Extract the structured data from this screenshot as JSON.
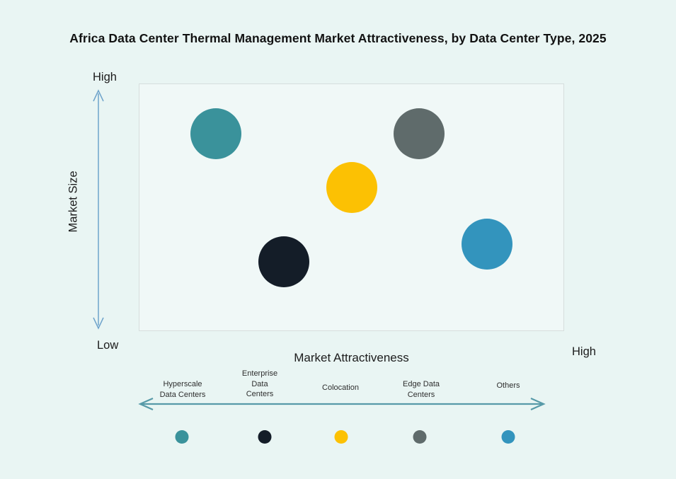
{
  "title": "Africa Data Center Thermal Management Market Attractiveness,  by Data Center Type, 2025",
  "axes": {
    "y_label": "Market Size",
    "y_high": "High",
    "y_low": "Low",
    "x_label": "Market Attractiveness",
    "x_high": "High"
  },
  "legend": {
    "items": [
      {
        "label": "Hyperscale\nData Centers",
        "color": "#3a929b"
      },
      {
        "label": "Enterprise\nData\nCenters",
        "color": "#141d28"
      },
      {
        "label": "Colocation",
        "color": "#fcc103"
      },
      {
        "label": "Edge Data\nCenters",
        "color": "#5f6b6b"
      },
      {
        "label": "Others",
        "color": "#3394bd"
      }
    ]
  },
  "colors": {
    "page_background": "#e9f5f3",
    "plot_background": "#f0f8f7",
    "plot_border": "#d6dedd",
    "vertical_arrow": "#6ea3cb",
    "horizontal_arrow": "#579aa8"
  },
  "chart_data": {
    "type": "scatter",
    "title": "Africa Data Center Thermal Management Market Attractiveness, by Data Center Type, 2025",
    "xlabel": "Market Attractiveness",
    "ylabel": "Market Size",
    "x_axis": {
      "range": [
        0,
        100
      ],
      "max_label": "High"
    },
    "y_axis": {
      "range": [
        0,
        100
      ],
      "min_label": "Low",
      "max_label": "High"
    },
    "grid": false,
    "legend_position": "bottom",
    "points": [
      {
        "name": "Hyperscale Data Centers",
        "x": 18,
        "y": 80,
        "r": 36,
        "color": "#3a929b"
      },
      {
        "name": "Enterprise Data Centers",
        "x": 34,
        "y": 28,
        "r": 36,
        "color": "#141d28"
      },
      {
        "name": "Colocation",
        "x": 50,
        "y": 58,
        "r": 36,
        "color": "#fcc103"
      },
      {
        "name": "Edge Data Centers",
        "x": 66,
        "y": 80,
        "r": 36,
        "color": "#5f6b6b"
      },
      {
        "name": "Others",
        "x": 82,
        "y": 35,
        "r": 36,
        "color": "#3394bd"
      }
    ]
  }
}
